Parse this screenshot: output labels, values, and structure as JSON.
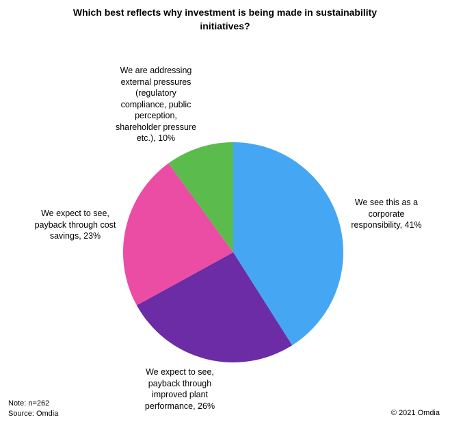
{
  "header": {
    "title_display": "Which best reflects why investment is being made in sustainability\ninitiatives?"
  },
  "chart_data": {
    "type": "pie",
    "title": "Which best reflects why investment is being made in sustainability initiatives?",
    "start_angle_deg": 0,
    "direction": "clockwise",
    "legend_position": "none",
    "slices": [
      {
        "label": "We see this as a corporate responsibility",
        "value": 41,
        "color": "#45A7F3"
      },
      {
        "label": "We expect to see, payback through improved plant performance",
        "value": 26,
        "color": "#6B2CA5"
      },
      {
        "label": "We expect to see, payback through cost savings",
        "value": 23,
        "color": "#EB4DA4"
      },
      {
        "label": "We are addressing external pressures (regulatory compliance, public perception, shareholder pressure etc.)",
        "value": 10,
        "color": "#5BBB4D"
      }
    ]
  },
  "labels": {
    "corporate": "We see this as a\ncorporate\nresponsibility, 41%",
    "plant": "We expect to see,\npayback through\nimproved plant\nperformance, 26%",
    "savings": "We expect to see,\npayback through cost\nsavings, 23%",
    "external": "We are addressing\nexternal pressures\n(regulatory\ncompliance, public\nperception,\nshareholder pressure\netc.), 10%"
  },
  "footer": {
    "note": "Note: n=262\nSource: Omdia",
    "copyright": "© 2021 Omdia"
  }
}
